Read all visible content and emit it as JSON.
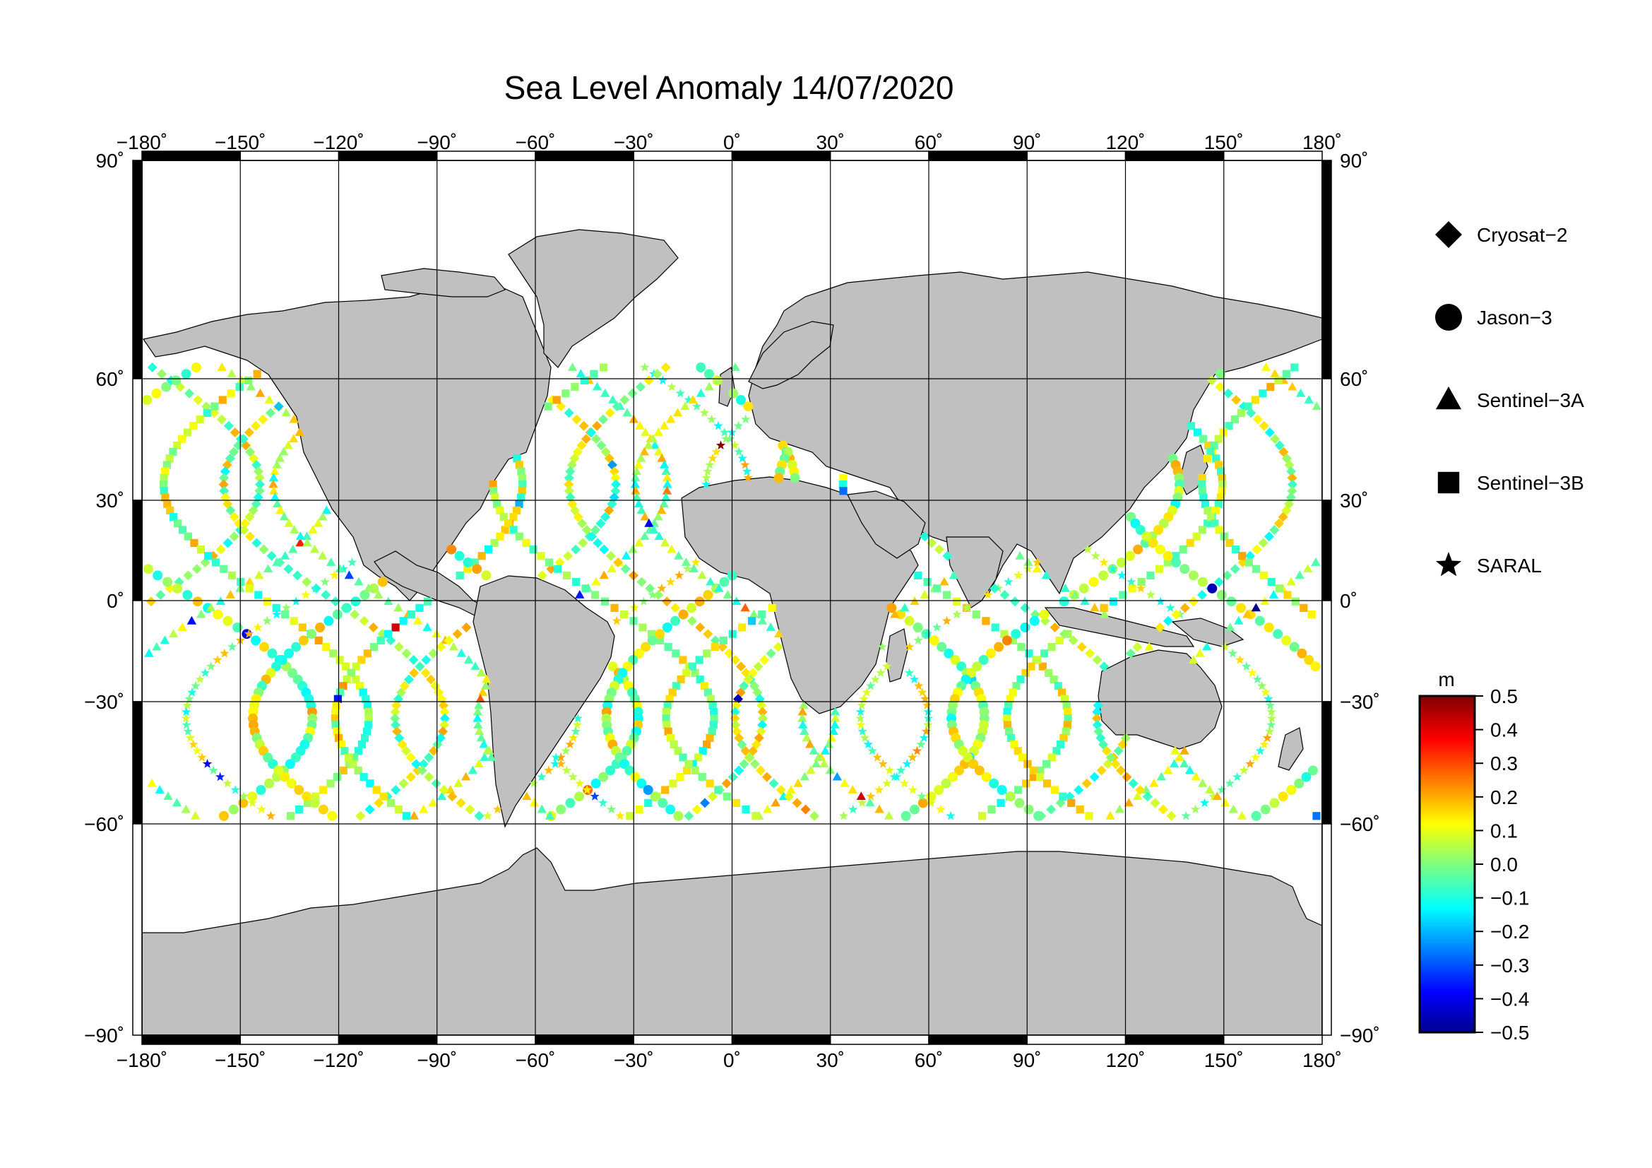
{
  "title": "Sea Level Anomaly 14/07/2020",
  "lon_ticks": [
    "−180˚",
    "−150˚",
    "−120˚",
    "−90˚",
    "−60˚",
    "−30˚",
    "0˚",
    "30˚",
    "60˚",
    "90˚",
    "120˚",
    "150˚",
    "180˚"
  ],
  "lat_ticks": [
    "90˚",
    "60˚",
    "30˚",
    "0˚",
    "−30˚",
    "−60˚",
    "−90˚"
  ],
  "legend": [
    {
      "symbol": "diamond-icon",
      "label": "Cryosat−2"
    },
    {
      "symbol": "circle-icon",
      "label": "Jason−3"
    },
    {
      "symbol": "triangle-icon",
      "label": "Sentinel−3A"
    },
    {
      "symbol": "square-icon",
      "label": "Sentinel−3B"
    },
    {
      "symbol": "star-icon",
      "label": "SARAL"
    }
  ],
  "colorbar": {
    "unit": "m",
    "ticks": [
      "0.5",
      "0.4",
      "0.3",
      "0.2",
      "0.1",
      "0.0",
      "−0.1",
      "−0.2",
      "−0.3",
      "−0.4",
      "−0.5"
    ],
    "range": [
      -0.5,
      0.5
    ]
  },
  "colors": {
    "land": "#c0c0c0",
    "frame": "#000000",
    "ocean": "#ffffff"
  }
}
